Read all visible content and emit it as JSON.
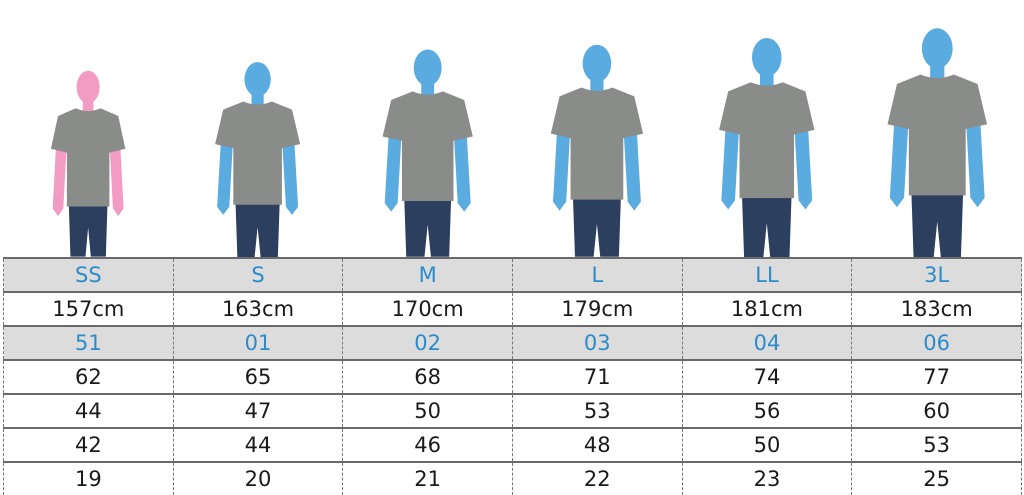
{
  "colors": {
    "female_silhouette": "#f29bc4",
    "male_silhouette": "#5aabdf",
    "shirt": "#8a8c89",
    "jeans": "#2d3f5e",
    "size_label": "#2b8ccc",
    "highlight_row": "#dcdcdc"
  },
  "figures": [
    {
      "size": "SS",
      "silhouette": "female",
      "relative_height": 0.78
    },
    {
      "size": "S",
      "silhouette": "male",
      "relative_height": 0.82
    },
    {
      "size": "M",
      "silhouette": "male",
      "relative_height": 0.87
    },
    {
      "size": "L",
      "silhouette": "male",
      "relative_height": 0.89
    },
    {
      "size": "LL",
      "silhouette": "male",
      "relative_height": 0.92
    },
    {
      "size": "3L",
      "silhouette": "male",
      "relative_height": 0.96
    }
  ],
  "table": {
    "rows": [
      {
        "highlight": true,
        "cells": [
          "SS",
          "S",
          "M",
          "L",
          "LL",
          "3L"
        ]
      },
      {
        "highlight": false,
        "cells": [
          "157cm",
          "163cm",
          "170cm",
          "179cm",
          "181cm",
          "183cm"
        ]
      },
      {
        "highlight": true,
        "cells": [
          "51",
          "01",
          "02",
          "03",
          "04",
          "06"
        ]
      },
      {
        "highlight": false,
        "cells": [
          "62",
          "65",
          "68",
          "71",
          "74",
          "77"
        ]
      },
      {
        "highlight": false,
        "cells": [
          "44",
          "47",
          "50",
          "53",
          "56",
          "60"
        ]
      },
      {
        "highlight": false,
        "cells": [
          "42",
          "44",
          "46",
          "48",
          "50",
          "53"
        ]
      },
      {
        "highlight": false,
        "cells": [
          "19",
          "20",
          "21",
          "22",
          "23",
          "25"
        ]
      }
    ]
  }
}
